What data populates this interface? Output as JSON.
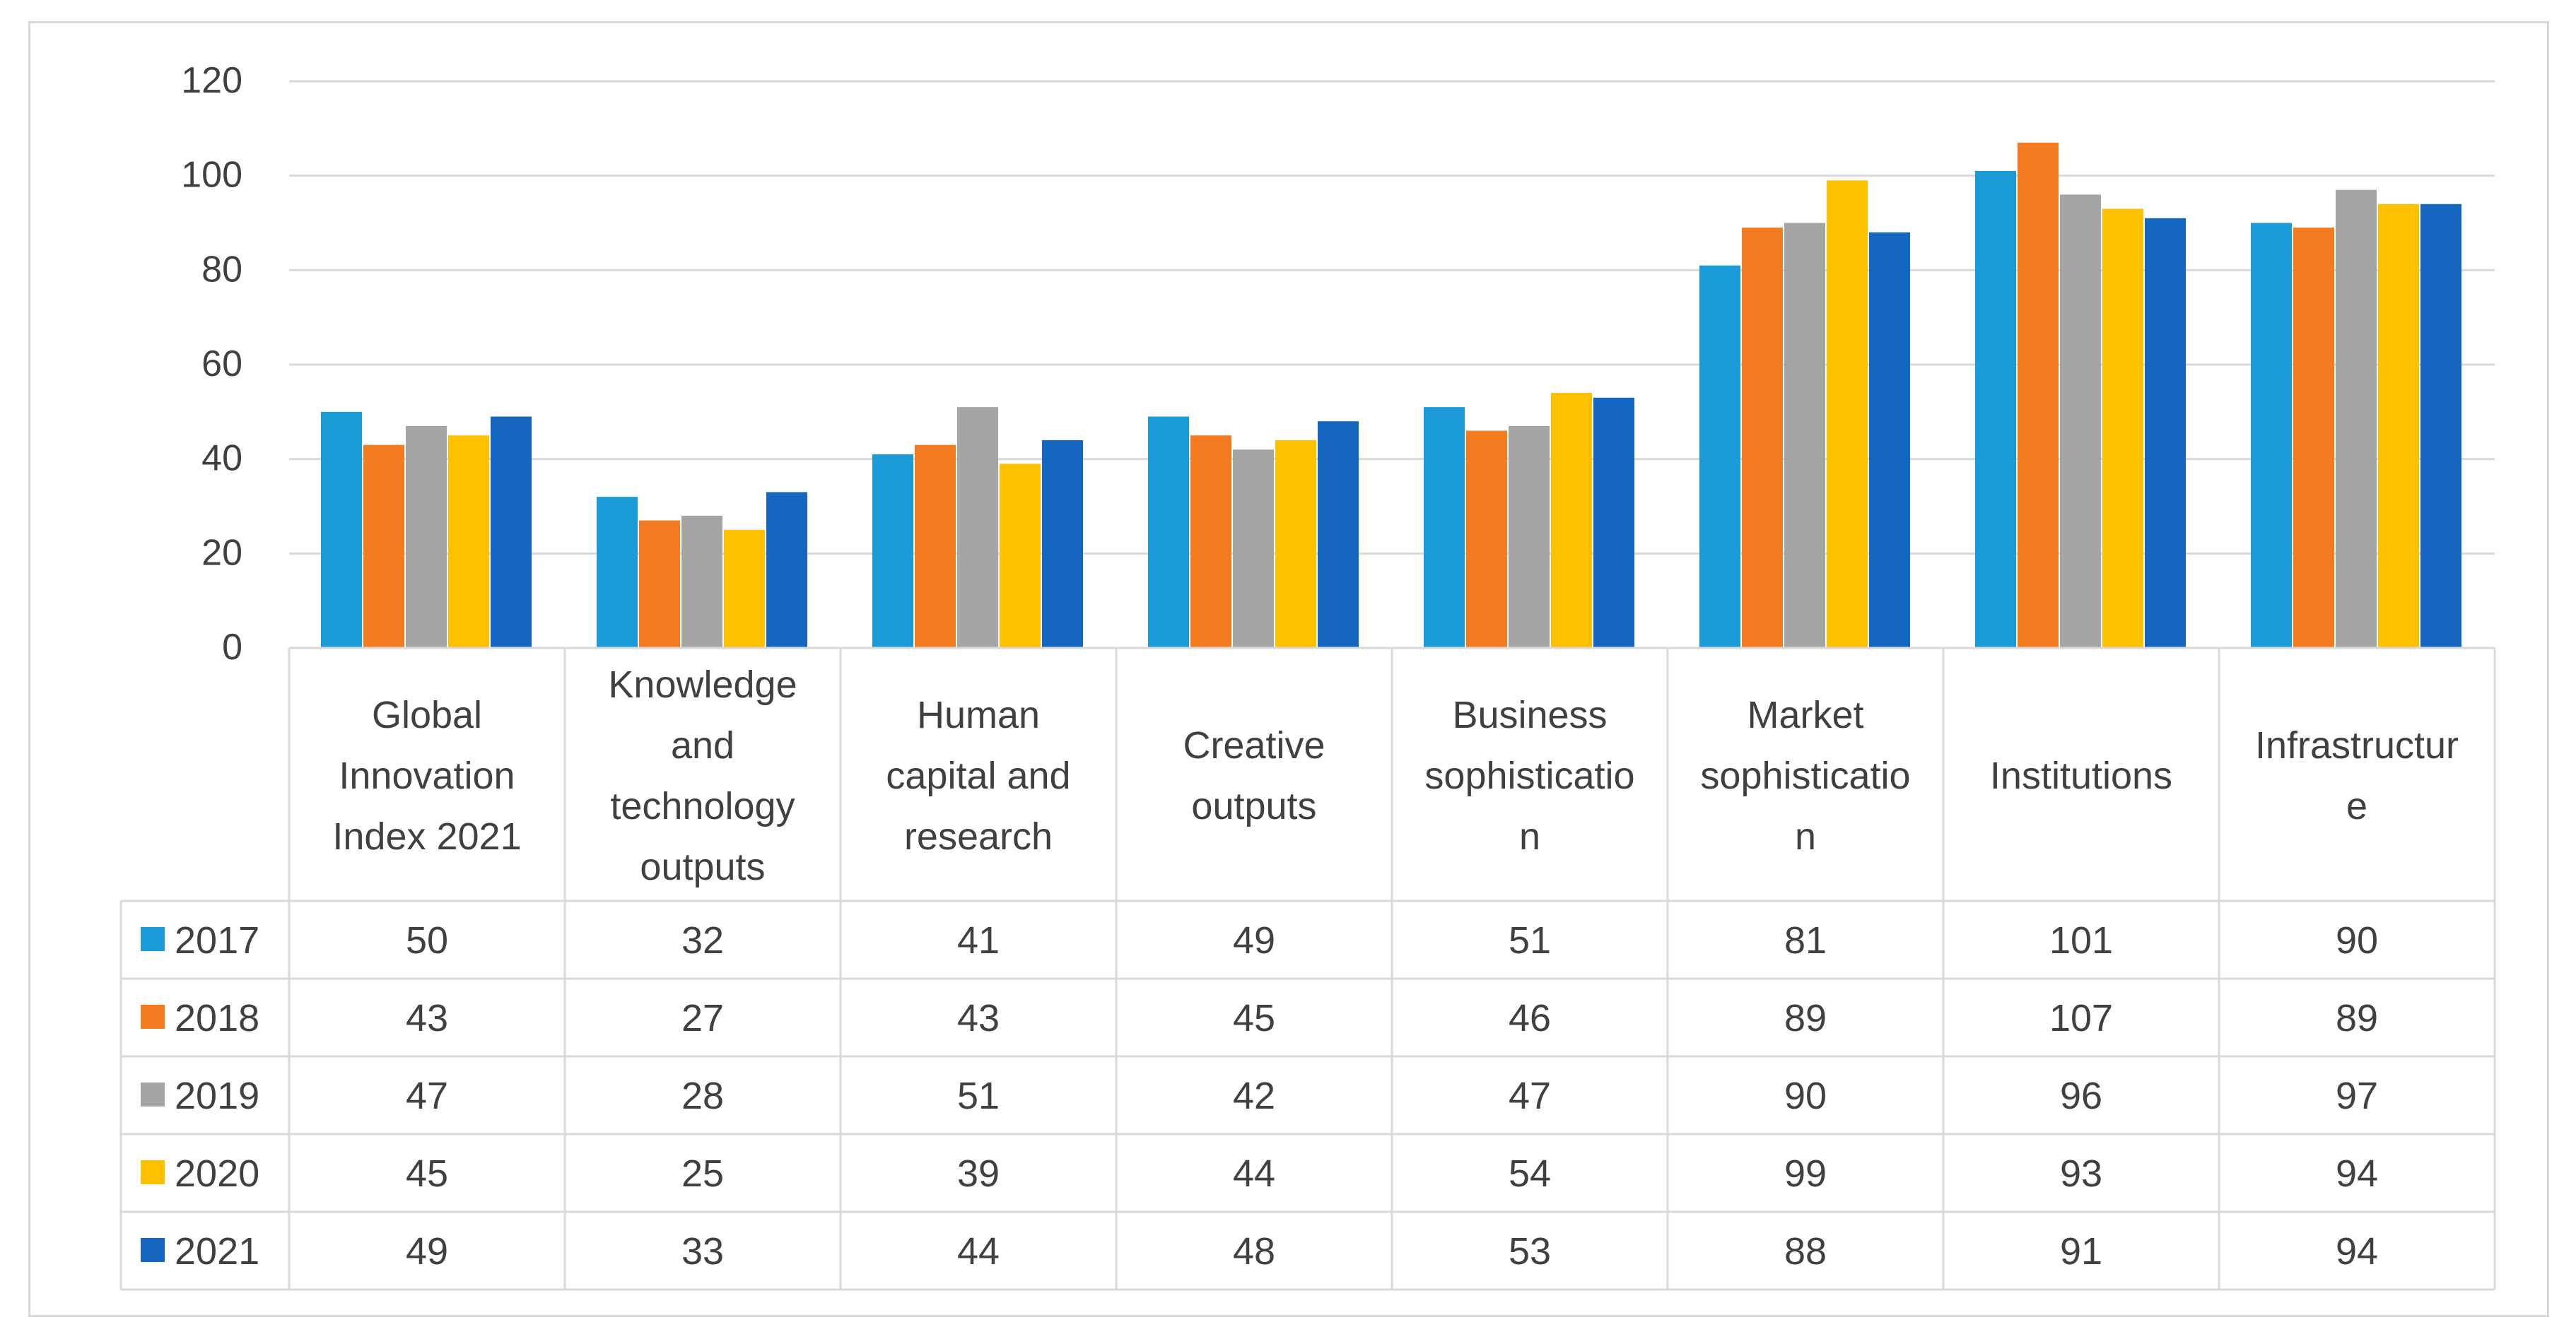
{
  "chart_data": {
    "type": "bar",
    "title": "",
    "xlabel": "",
    "ylabel": "",
    "ylim": [
      0,
      120
    ],
    "yticks": [
      0,
      20,
      40,
      60,
      80,
      100,
      120
    ],
    "grid": true,
    "legend": "in-table-left",
    "categories": [
      [
        "Global",
        "Innovation",
        "Index 2021"
      ],
      [
        "Knowledge",
        "and",
        "technology",
        "outputs"
      ],
      [
        "Human",
        "capital and",
        "research"
      ],
      [
        "Creative",
        "outputs"
      ],
      [
        "Business",
        "sophisticatio",
        "n"
      ],
      [
        "Market",
        "sophisticatio",
        "n"
      ],
      [
        "Institutions"
      ],
      [
        "Infrastructur",
        "e"
      ]
    ],
    "series": [
      {
        "name": "2017",
        "color": "#1a9ad6",
        "values": [
          50,
          32,
          41,
          49,
          51,
          81,
          101,
          90
        ]
      },
      {
        "name": "2018",
        "color": "#f47b20",
        "values": [
          43,
          27,
          43,
          45,
          46,
          89,
          107,
          89
        ]
      },
      {
        "name": "2019",
        "color": "#a5a5a5",
        "values": [
          47,
          28,
          51,
          42,
          47,
          90,
          96,
          97
        ]
      },
      {
        "name": "2020",
        "color": "#ffc000",
        "values": [
          45,
          25,
          39,
          44,
          54,
          99,
          93,
          94
        ]
      },
      {
        "name": "2021",
        "color": "#1566c0",
        "values": [
          49,
          33,
          44,
          48,
          53,
          88,
          91,
          94
        ]
      }
    ]
  }
}
